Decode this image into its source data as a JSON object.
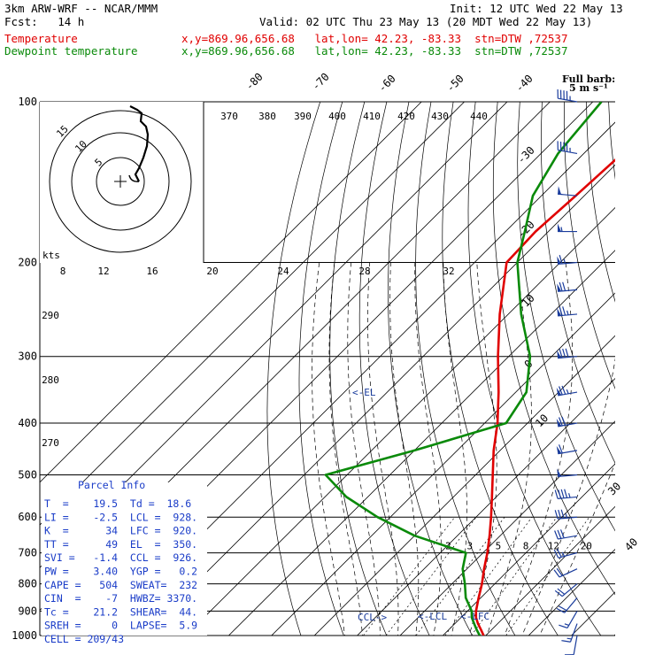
{
  "header": {
    "model_line": "3km ARW-WRF -- NCAR/MMM",
    "init_line": "Init: 12 UTC Wed 22 May 13",
    "fcst_line": "Fcst:   14 h",
    "valid_line": "Valid: 02 UTC Thu 23 May 13 (20 MDT Wed 22 May 13)",
    "temp_label": "Temperature",
    "dew_label": "Dewpoint temperature",
    "temp_info": "x,y=869.96,656.68   lat,lon= 42.23, -83.33  stn=DTW ,72537",
    "dew_info": "x,y=869.96,656.68   lat,lon= 42.23, -83.33  stn=DTW ,72537",
    "barb_key": "Full barb:",
    "barb_unit": "5 m s⁻¹"
  },
  "colors": {
    "temperature": "#e00000",
    "dewpoint": "#0a8a0a",
    "parcel": "#1a3cc8",
    "barbs": "#1a3c9c",
    "isobar": "#000000",
    "dry_adiabat": "#000000",
    "moist_adiabat": "#000000"
  },
  "chart_data": {
    "type": "line",
    "chart_kind": "skew-T log-p sounding",
    "pressure_levels": [
      100,
      200,
      300,
      400,
      500,
      600,
      700,
      800,
      900,
      1000
    ],
    "temperature_ticks": [
      -80,
      -70,
      -60,
      -50,
      -40,
      -30,
      -20,
      -10,
      0,
      10,
      30,
      40
    ],
    "theta_labels": [
      370,
      380,
      390,
      400,
      410,
      420,
      430,
      440
    ],
    "theta_labels_left": [
      290,
      280,
      270
    ],
    "mixing_ratio_labels": [
      "2",
      "3",
      "5",
      "8",
      "12",
      "20"
    ],
    "hodograph": {
      "unit_label": "kts",
      "axis_labels": [
        "8",
        "12",
        "16",
        "20",
        "24",
        "28",
        "32"
      ],
      "ring_labels": [
        "5",
        "10",
        "15"
      ]
    },
    "series": [
      {
        "name": "Temperature",
        "pressure": [
          1000,
          975,
          950,
          925,
          900,
          850,
          800,
          750,
          700,
          650,
          600,
          550,
          500,
          450,
          400,
          350,
          300,
          250,
          200,
          175,
          150,
          125,
          100
        ],
        "temp_c": [
          19.5,
          17.5,
          15.4,
          13.5,
          12.0,
          9.5,
          7.0,
          4.0,
          1.0,
          -2.5,
          -6.5,
          -11.0,
          -16.0,
          -21.5,
          -27.0,
          -34.0,
          -42.5,
          -52.0,
          -62.5,
          -63.0,
          -62.0,
          -61.0,
          -61.0
        ]
      },
      {
        "name": "Dewpoint temperature",
        "pressure": [
          1000,
          975,
          950,
          925,
          900,
          850,
          800,
          750,
          700,
          650,
          600,
          550,
          500,
          450,
          400,
          350,
          300,
          250,
          200,
          175,
          150,
          125,
          100
        ],
        "temp_c": [
          18.6,
          16.5,
          14.5,
          12.5,
          11.0,
          6.5,
          3.0,
          -1.0,
          -4.0,
          -20.0,
          -33.0,
          -45.0,
          -55.0,
          -40.0,
          -25.0,
          -27.5,
          -35.0,
          -47.0,
          -60.0,
          -65.5,
          -72.0,
          -76.0,
          -78.0
        ]
      }
    ],
    "wind_barbs": [
      {
        "p": 100,
        "dir": 280,
        "spd_ms": 22
      },
      {
        "p": 125,
        "dir": 280,
        "spd_ms": 23
      },
      {
        "p": 150,
        "dir": 275,
        "spd_ms": 24
      },
      {
        "p": 175,
        "dir": 270,
        "spd_ms": 28
      },
      {
        "p": 200,
        "dir": 265,
        "spd_ms": 33
      },
      {
        "p": 225,
        "dir": 265,
        "spd_ms": 35
      },
      {
        "p": 250,
        "dir": 265,
        "spd_ms": 37
      },
      {
        "p": 300,
        "dir": 265,
        "spd_ms": 40
      },
      {
        "p": 350,
        "dir": 260,
        "spd_ms": 38
      },
      {
        "p": 400,
        "dir": 260,
        "spd_ms": 35
      },
      {
        "p": 450,
        "dir": 260,
        "spd_ms": 30
      },
      {
        "p": 500,
        "dir": 265,
        "spd_ms": 26
      },
      {
        "p": 550,
        "dir": 265,
        "spd_ms": 22
      },
      {
        "p": 600,
        "dir": 265,
        "spd_ms": 18
      },
      {
        "p": 650,
        "dir": 260,
        "spd_ms": 15
      },
      {
        "p": 700,
        "dir": 255,
        "spd_ms": 13
      },
      {
        "p": 750,
        "dir": 245,
        "spd_ms": 11
      },
      {
        "p": 800,
        "dir": 230,
        "spd_ms": 10
      },
      {
        "p": 850,
        "dir": 220,
        "spd_ms": 9
      },
      {
        "p": 900,
        "dir": 210,
        "spd_ms": 8
      },
      {
        "p": 950,
        "dir": 200,
        "spd_ms": 7
      },
      {
        "p": 1000,
        "dir": 190,
        "spd_ms": 5
      }
    ],
    "markers": [
      {
        "label": "<-EL",
        "p": 350
      },
      {
        "label": "<-LCL",
        "p": 928
      },
      {
        "label": "<-LFC",
        "p": 920
      },
      {
        "label": "CCL->",
        "p": 926
      }
    ]
  },
  "parcel": {
    "title": "Parcel Info",
    "rows": [
      "T  =    19.5  Td =  18.6",
      "LI =    -2.5  LCL =  928.",
      "K  =      34  LFC =  920.",
      "TT =      49  EL  =  350.",
      "SVI =   -1.4  CCL =  926.",
      "PW =    3.40  YGP =   0.2",
      "CAPE =   504  SWEAT=  232",
      "CIN  =    -7  HWBZ= 3370.",
      "Tc =    21.2  SHEAR=  44.",
      "SREH =     0  LAPSE=  5.9",
      "CELL = 209/43"
    ]
  }
}
